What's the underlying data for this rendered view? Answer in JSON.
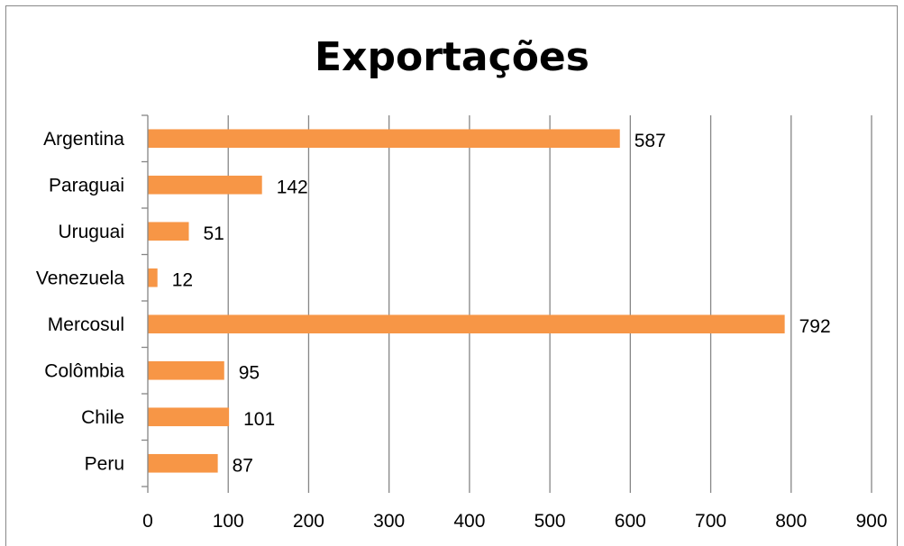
{
  "chart_data": {
    "type": "bar",
    "orientation": "horizontal",
    "title": "Exportações",
    "categories": [
      "Argentina",
      "Paraguai",
      "Uruguai",
      "Venezuela",
      "Mercosul",
      "Colômbia",
      "Chile",
      "Peru"
    ],
    "values": [
      587,
      142,
      51,
      12,
      792,
      95,
      101,
      87
    ],
    "xlim": [
      0,
      900
    ],
    "xticks": [
      "0",
      "100",
      "200",
      "300",
      "400",
      "500",
      "600",
      "700",
      "800",
      "900"
    ],
    "xlabel": "",
    "ylabel": "",
    "grid": "vertical",
    "legend": "none",
    "data_labels": [
      "587",
      "142",
      "51",
      "12",
      "792",
      "95",
      "101",
      "87"
    ],
    "colors": {
      "bar": "#F79646",
      "grid": "#868686",
      "axis": "#868686",
      "text": "#000000"
    }
  }
}
